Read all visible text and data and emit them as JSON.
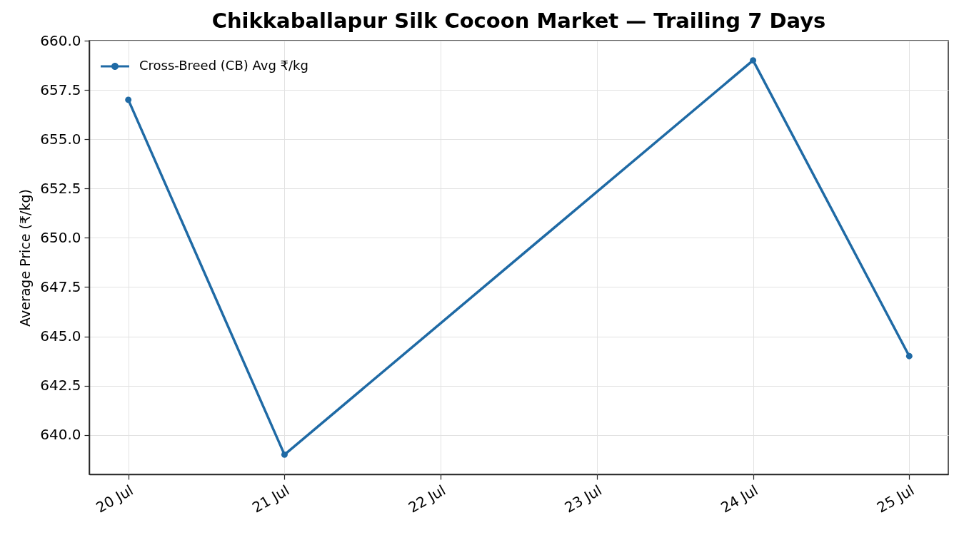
{
  "chart_data": {
    "type": "line",
    "title": "Chikkaballapur Silk Cocoon Market — Trailing 7 Days",
    "ylabel": "Average Price (₹/kg)",
    "x": [
      "--07-20",
      "--07-21",
      "--07-24",
      "--07-25"
    ],
    "series": [
      {
        "name": "Cross-Breed (CB) Avg ₹/kg",
        "color": "#1f6aa5",
        "values": [
          657,
          639,
          659,
          644
        ]
      }
    ],
    "xlim": [
      "--07-19T18:00",
      "--07-25T06:00"
    ],
    "xticks": [
      {
        "value": "--07-20",
        "label": "20 Jul"
      },
      {
        "value": "--07-21",
        "label": "21 Jul"
      },
      {
        "value": "--07-22",
        "label": "22 Jul"
      },
      {
        "value": "--07-23",
        "label": "23 Jul"
      },
      {
        "value": "--07-24",
        "label": "24 Jul"
      },
      {
        "value": "--07-25",
        "label": "25 Jul"
      }
    ],
    "ylim": [
      638,
      660
    ],
    "yticks": [
      {
        "value": 640,
        "label": "640.0"
      },
      642.5,
      {
        "value": 645,
        "label": "645.0"
      },
      647.5,
      {
        "value": 650,
        "label": "650.0"
      },
      652.5,
      {
        "value": 655,
        "label": "655.0"
      },
      657.5,
      {
        "value": 660,
        "label": "660.0"
      }
    ],
    "grid": true,
    "legend": "top left",
    "marker": "circle",
    "line_style": "solid"
  }
}
